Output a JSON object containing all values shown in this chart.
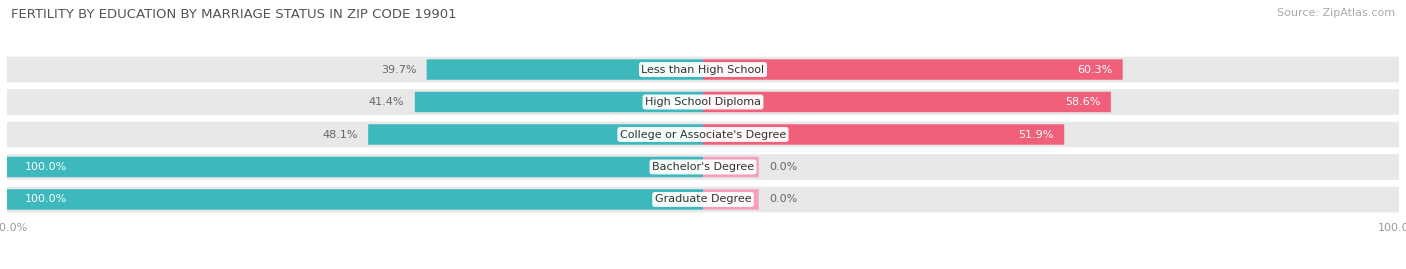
{
  "title": "FERTILITY BY EDUCATION BY MARRIAGE STATUS IN ZIP CODE 19901",
  "source": "Source: ZipAtlas.com",
  "categories": [
    "Less than High School",
    "High School Diploma",
    "College or Associate's Degree",
    "Bachelor's Degree",
    "Graduate Degree"
  ],
  "married": [
    39.7,
    41.4,
    48.1,
    100.0,
    100.0
  ],
  "unmarried": [
    60.3,
    58.6,
    51.9,
    0.0,
    0.0
  ],
  "unmarried_stub": [
    60.3,
    58.6,
    51.9,
    8.0,
    8.0
  ],
  "color_married": "#3db8bc",
  "color_unmarried_full": "#f0607a",
  "color_unmarried_stub": "#f5a0b8",
  "color_bg": "#ffffff",
  "color_row_bg": "#e8e8e8",
  "color_row_sep": "#ffffff",
  "bar_height": 0.62,
  "title_fontsize": 9.5,
  "label_fontsize": 8.0,
  "tick_fontsize": 8.0,
  "source_fontsize": 8.0
}
